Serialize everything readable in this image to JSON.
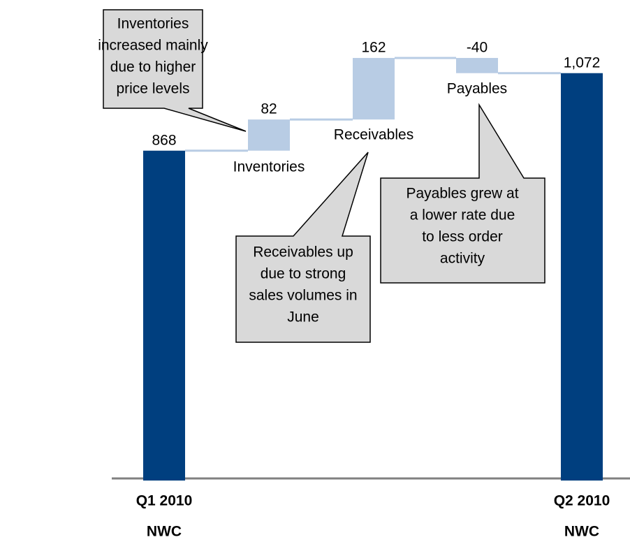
{
  "chart_data": {
    "type": "waterfall",
    "categories": [
      "Q1 2010",
      "Inventories",
      "Receivables",
      "Payables",
      "Q2 2010"
    ],
    "category_sublabels": [
      "NWC",
      null,
      null,
      null,
      "NWC"
    ],
    "values": [
      868,
      82,
      162,
      -40,
      1072
    ],
    "value_labels": [
      "868",
      "82",
      "162",
      "-40",
      "1,072"
    ],
    "totals": [
      true,
      false,
      false,
      false,
      true
    ],
    "total_color": "#003f7f",
    "delta_color": "#b8cce4",
    "ylim": [
      0,
      1200
    ],
    "annotations": [
      {
        "lines": [
          "Inventories",
          "increased mainly",
          "due to higher",
          "price levels"
        ]
      },
      {
        "lines": [
          "Receivables up",
          "due to strong",
          "sales volumes in",
          "June"
        ]
      },
      {
        "lines": [
          "Payables grew at",
          "a lower rate due",
          "to less order",
          "activity"
        ]
      }
    ]
  }
}
